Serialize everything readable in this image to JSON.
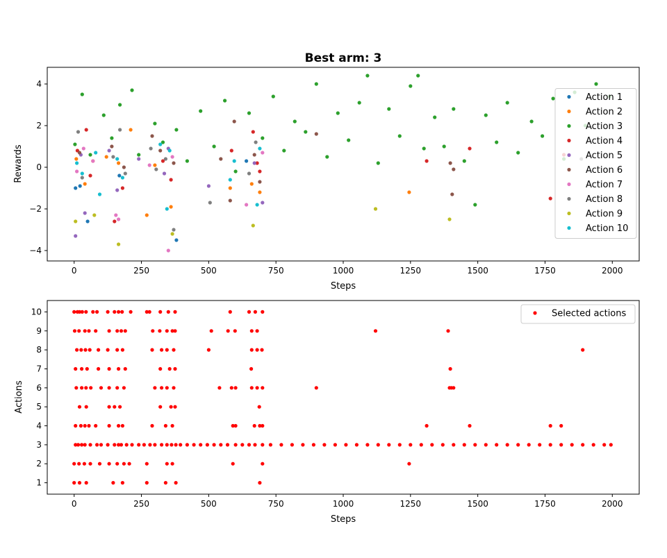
{
  "chart_data": [
    {
      "type": "scatter",
      "title": "Best arm: 3",
      "xlabel": "Steps",
      "ylabel": "Rewards",
      "xlim": [
        -100,
        2100
      ],
      "ylim": [
        -4.5,
        4.8
      ],
      "xticks": [
        0,
        250,
        500,
        750,
        1000,
        1250,
        1500,
        1750,
        2000
      ],
      "yticks": [
        -4,
        -2,
        0,
        2,
        4
      ],
      "legend_position": "right",
      "grid": false,
      "series": [
        {
          "name": "Action 1",
          "color": "#1f77b4",
          "x": [
            5,
            22,
            50,
            168,
            380,
            640
          ],
          "y": [
            -1.0,
            -0.9,
            -2.6,
            -0.4,
            -3.5,
            0.3
          ]
        },
        {
          "name": "Action 2",
          "color": "#ff7f0e",
          "x": [
            8,
            40,
            70,
            120,
            165,
            210,
            270,
            300,
            360,
            580,
            660,
            690,
            1245
          ],
          "y": [
            0.4,
            -0.8,
            0.3,
            0.5,
            0.2,
            1.8,
            -2.3,
            0.1,
            -1.9,
            -1.0,
            -0.8,
            -1.2,
            -1.2
          ]
        },
        {
          "name": "Action 3",
          "color": "#2ca02c",
          "x": [
            3,
            30,
            60,
            110,
            140,
            170,
            215,
            240,
            300,
            330,
            380,
            420,
            470,
            520,
            560,
            600,
            650,
            700,
            740,
            780,
            820,
            860,
            900,
            940,
            980,
            1020,
            1060,
            1090,
            1130,
            1170,
            1210,
            1250,
            1278,
            1300,
            1340,
            1375,
            1410,
            1450,
            1490,
            1530,
            1570,
            1610,
            1650,
            1700,
            1740,
            1780,
            1820,
            1860,
            1900,
            1940,
            1990
          ],
          "y": [
            1.1,
            3.5,
            0.6,
            2.5,
            1.4,
            3.0,
            3.7,
            0.6,
            2.1,
            1.2,
            1.8,
            0.3,
            2.7,
            1.0,
            3.2,
            -0.2,
            2.6,
            1.4,
            3.4,
            0.8,
            2.2,
            1.7,
            4.0,
            0.5,
            2.6,
            1.3,
            3.1,
            4.4,
            0.2,
            2.8,
            1.5,
            3.9,
            4.4,
            0.9,
            2.4,
            1.0,
            2.8,
            0.3,
            -1.8,
            2.5,
            1.2,
            3.1,
            0.7,
            2.2,
            1.5,
            3.3,
            0.4,
            3.6,
            2.0,
            4.0,
            3.4
          ]
        },
        {
          "name": "Action 4",
          "color": "#d62728",
          "x": [
            12,
            45,
            60,
            150,
            180,
            330,
            360,
            585,
            665,
            680,
            690,
            1310,
            1470,
            1770,
            1820
          ],
          "y": [
            0.8,
            1.8,
            -0.4,
            -2.6,
            -1.0,
            0.3,
            -0.6,
            0.8,
            1.7,
            0.2,
            -0.2,
            0.3,
            0.9,
            -1.5,
            0.6
          ]
        },
        {
          "name": "Action 5",
          "color": "#9467bd",
          "x": [
            5,
            25,
            40,
            130,
            160,
            240,
            335,
            350,
            500,
            670,
            700
          ],
          "y": [
            -3.3,
            0.6,
            -2.2,
            0.8,
            -1.1,
            0.4,
            -0.3,
            0.9,
            -0.9,
            0.2,
            -1.7
          ]
        },
        {
          "name": "Action 6",
          "color": "#8c564b",
          "x": [
            20,
            140,
            185,
            290,
            320,
            370,
            545,
            580,
            595,
            670,
            690,
            900,
            1398,
            1405,
            1410
          ],
          "y": [
            0.7,
            1.0,
            0.0,
            1.5,
            0.8,
            0.2,
            0.4,
            -1.6,
            2.2,
            0.6,
            -0.7,
            1.6,
            0.2,
            -1.3,
            -0.1
          ]
        },
        {
          "name": "Action 7",
          "color": "#e377c2",
          "x": [
            10,
            35,
            70,
            155,
            165,
            280,
            350,
            365,
            640,
            700
          ],
          "y": [
            -0.2,
            0.9,
            0.3,
            -2.3,
            -2.5,
            0.1,
            -4.0,
            0.5,
            -1.8,
            0.7
          ]
        },
        {
          "name": "Action 8",
          "color": "#7f7f7f",
          "x": [
            15,
            30,
            145,
            170,
            190,
            285,
            305,
            340,
            370,
            505,
            650,
            675,
            1885
          ],
          "y": [
            1.7,
            -0.5,
            0.5,
            1.8,
            -0.3,
            0.9,
            -0.1,
            0.4,
            -3.0,
            -1.7,
            -0.3,
            1.2,
            0.4
          ]
        },
        {
          "name": "Action 9",
          "color": "#bcbd22",
          "x": [
            5,
            75,
            165,
            365,
            665,
            1120,
            1395
          ],
          "y": [
            -2.6,
            -2.3,
            -3.7,
            -3.2,
            -2.8,
            -2.0,
            -2.5
          ]
        },
        {
          "name": "Action 10",
          "color": "#17becf",
          "x": [
            10,
            30,
            80,
            95,
            160,
            180,
            320,
            345,
            355,
            580,
            595,
            680,
            690
          ],
          "y": [
            0.2,
            -0.3,
            0.7,
            -1.3,
            0.4,
            -0.5,
            1.1,
            -2.0,
            0.8,
            -0.6,
            0.3,
            -1.8,
            0.9
          ]
        }
      ]
    },
    {
      "type": "scatter",
      "title": "",
      "xlabel": "Steps",
      "ylabel": "Actions",
      "xlim": [
        -100,
        2100
      ],
      "ylim": [
        0.4,
        10.6
      ],
      "xticks": [
        0,
        250,
        500,
        750,
        1000,
        1250,
        1500,
        1750,
        2000
      ],
      "yticks": [
        1,
        2,
        3,
        4,
        5,
        6,
        7,
        8,
        9,
        10
      ],
      "legend_position": "top-right",
      "grid": false,
      "series": [
        {
          "name": "Selected actions",
          "color": "#ff0000",
          "x": [
            5,
            15,
            28,
            40,
            60,
            85,
            100,
            125,
            150,
            165,
            175,
            195,
            215,
            240,
            260,
            282,
            300,
            325,
            345,
            362,
            378,
            395,
            420,
            445,
            470,
            495,
            520,
            545,
            570,
            600,
            625,
            650,
            672,
            700,
            730,
            770,
            810,
            850,
            890,
            930,
            970,
            1010,
            1050,
            1090,
            1130,
            1170,
            1210,
            1250,
            1290,
            1330,
            1370,
            1410,
            1450,
            1490,
            1530,
            1570,
            1610,
            1650,
            1690,
            1730,
            1770,
            1810,
            1850,
            1890,
            1930,
            1970,
            1995,
            0,
            12,
            20,
            30,
            44,
            70,
            85,
            125,
            150,
            165,
            178,
            210,
            270,
            280,
            320,
            350,
            375,
            580,
            650,
            673,
            700,
            2,
            18,
            40,
            55,
            80,
            130,
            160,
            175,
            190,
            292,
            318,
            345,
            365,
            375,
            510,
            572,
            598,
            660,
            680,
            1120,
            1390,
            10,
            26,
            42,
            58,
            90,
            125,
            160,
            180,
            290,
            325,
            345,
            370,
            500,
            660,
            680,
            698,
            1890,
            5,
            28,
            48,
            90,
            130,
            165,
            190,
            320,
            355,
            375,
            658,
            1398,
            8,
            28,
            44,
            62,
            100,
            130,
            160,
            185,
            300,
            325,
            345,
            370,
            540,
            585,
            600,
            660,
            680,
            700,
            900,
            1395,
            1402,
            1410,
            20,
            45,
            130,
            150,
            170,
            320,
            360,
            375,
            688,
            5,
            25,
            40,
            55,
            80,
            130,
            165,
            180,
            290,
            340,
            365,
            590,
            600,
            670,
            690,
            700,
            1310,
            1470,
            1770,
            1810,
            0,
            18,
            38,
            60,
            95,
            130,
            160,
            185,
            205,
            270,
            345,
            365,
            590,
            700,
            1245,
            0,
            20,
            45,
            145,
            180,
            270,
            340,
            378,
            690
          ],
          "y": [
            3,
            3,
            3,
            3,
            3,
            3,
            3,
            3,
            3,
            3,
            3,
            3,
            3,
            3,
            3,
            3,
            3,
            3,
            3,
            3,
            3,
            3,
            3,
            3,
            3,
            3,
            3,
            3,
            3,
            3,
            3,
            3,
            3,
            3,
            3,
            3,
            3,
            3,
            3,
            3,
            3,
            3,
            3,
            3,
            3,
            3,
            3,
            3,
            3,
            3,
            3,
            3,
            3,
            3,
            3,
            3,
            3,
            3,
            3,
            3,
            3,
            3,
            3,
            3,
            3,
            3,
            3,
            10,
            10,
            10,
            10,
            10,
            10,
            10,
            10,
            10,
            10,
            10,
            10,
            10,
            10,
            10,
            10,
            10,
            10,
            10,
            10,
            10,
            9,
            9,
            9,
            9,
            9,
            9,
            9,
            9,
            9,
            9,
            9,
            9,
            9,
            9,
            9,
            9,
            9,
            9,
            9,
            9,
            9,
            8,
            8,
            8,
            8,
            8,
            8,
            8,
            8,
            8,
            8,
            8,
            8,
            8,
            8,
            8,
            8,
            8,
            7,
            7,
            7,
            7,
            7,
            7,
            7,
            7,
            7,
            7,
            7,
            7,
            6,
            6,
            6,
            6,
            6,
            6,
            6,
            6,
            6,
            6,
            6,
            6,
            6,
            6,
            6,
            6,
            6,
            6,
            6,
            6,
            6,
            6,
            5,
            5,
            5,
            5,
            5,
            5,
            5,
            5,
            5,
            4,
            4,
            4,
            4,
            4,
            4,
            4,
            4,
            4,
            4,
            4,
            4,
            4,
            4,
            4,
            4,
            4,
            4,
            4,
            4,
            2,
            2,
            2,
            2,
            2,
            2,
            2,
            2,
            2,
            2,
            2,
            2,
            2,
            2,
            2,
            1,
            1,
            1,
            1,
            1,
            1,
            1,
            1,
            1
          ]
        }
      ]
    }
  ]
}
